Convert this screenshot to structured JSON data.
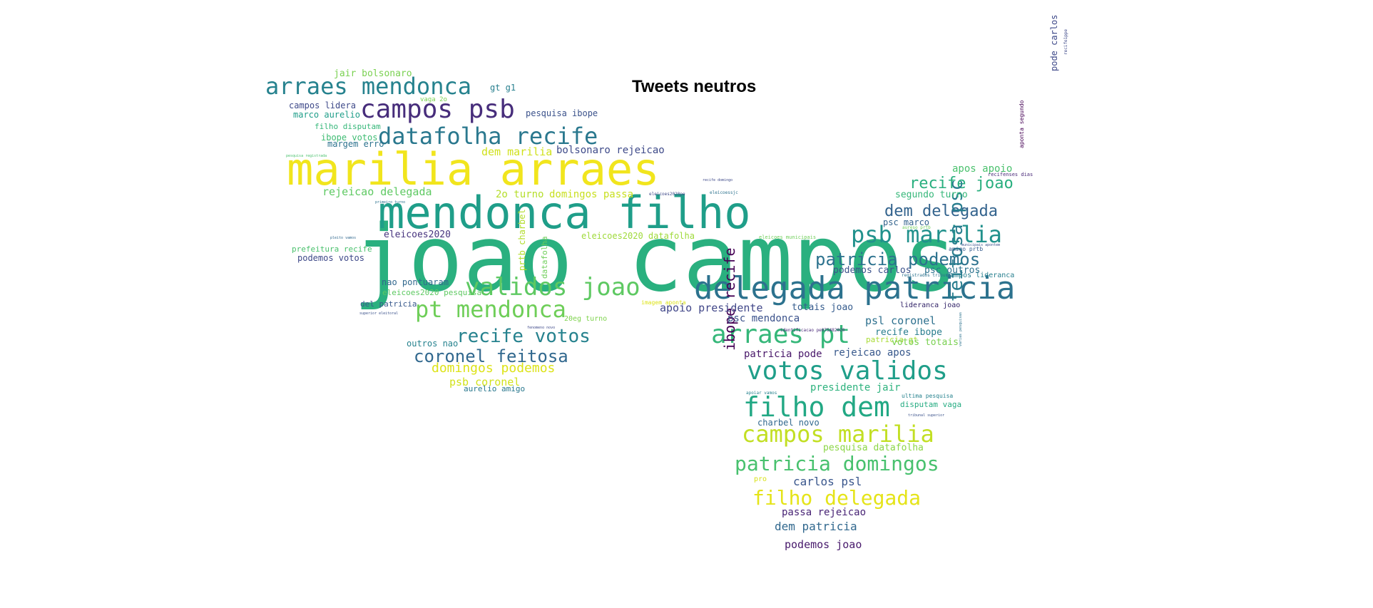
{
  "title": "Tweets neutros",
  "palette": [
    "#fde725",
    "#b5de2b",
    "#6ece58",
    "#35b779",
    "#1f9e89",
    "#26828e",
    "#31688e",
    "#3e4989",
    "#482878",
    "#440154"
  ],
  "words": [
    {
      "text": "joao campos",
      "color": "#2ab07f"
    },
    {
      "text": "mendonca filho",
      "color": "#1f9e89"
    },
    {
      "text": "marilia arraes",
      "color": "#f1e51d"
    },
    {
      "text": "delegada patricia",
      "color": "#2c728e"
    },
    {
      "text": "arraes mendonca",
      "color": "#26828e"
    },
    {
      "text": "campos psb",
      "color": "#472d7b"
    },
    {
      "text": "datafolha recife",
      "color": "#2a788e"
    },
    {
      "text": "validos joao",
      "color": "#5ec962"
    },
    {
      "text": "pt mendonca",
      "color": "#6ece58"
    },
    {
      "text": "recife votos",
      "color": "#26828e"
    },
    {
      "text": "coronel feitosa",
      "color": "#31688e"
    },
    {
      "text": "domingos podemos",
      "color": "#dde318"
    },
    {
      "text": "psb marilia",
      "color": "#21918c"
    },
    {
      "text": "patricia podemos",
      "color": "#2c728e"
    },
    {
      "text": "arraes pt",
      "color": "#35b779"
    },
    {
      "text": "votos validos",
      "color": "#1f9e89"
    },
    {
      "text": "filho dem",
      "color": "#22a884"
    },
    {
      "text": "campos marilia",
      "color": "#c2df23"
    },
    {
      "text": "patricia domingos",
      "color": "#48c16e"
    },
    {
      "text": "filho delegada",
      "color": "#e5e419"
    },
    {
      "text": "recife joao",
      "color": "#29af7f"
    },
    {
      "text": "dem delegada",
      "color": "#33638d"
    },
    {
      "text": "feitosa psc",
      "color": "#287d8e"
    },
    {
      "text": "ibope recife",
      "color": "#440154"
    },
    {
      "text": "jair bolsonaro",
      "color": "#7ad151"
    },
    {
      "text": "pesquisa ibope",
      "color": "#3b528b"
    },
    {
      "text": "dem marilia",
      "color": "#d0e11c"
    },
    {
      "text": "bolsonaro rejeicao",
      "color": "#3e4a89"
    },
    {
      "text": "rejeicao delegada",
      "color": "#5ec962"
    },
    {
      "text": "2o turno",
      "color": "#b5de2b"
    },
    {
      "text": "domingos passa",
      "color": "#c8e020"
    },
    {
      "text": "eleicoes2020",
      "color": "#46337e"
    },
    {
      "text": "eleicoes2020 datafolha",
      "color": "#9fda3a"
    },
    {
      "text": "prefeitura recife",
      "color": "#4ac16d"
    },
    {
      "text": "podemos votos",
      "color": "#3e4989"
    },
    {
      "text": "nao pontuaram",
      "color": "#31688e"
    },
    {
      "text": "eleicoes2020 pesquisa",
      "color": "#5ec962"
    },
    {
      "text": "del patricia",
      "color": "#38598c"
    },
    {
      "text": "outros nao",
      "color": "#26828e"
    },
    {
      "text": "psb coronel",
      "color": "#d2e21b"
    },
    {
      "text": "aurelio amigo",
      "color": "#2a788e"
    },
    {
      "text": "campos lidera",
      "color": "#3e4989"
    },
    {
      "text": "marco aurelio",
      "color": "#1f9e89"
    },
    {
      "text": "filho disputam",
      "color": "#35b779"
    },
    {
      "text": "ibope votos",
      "color": "#3fbc73"
    },
    {
      "text": "margem erro",
      "color": "#2c728e"
    },
    {
      "text": "gt g1",
      "color": "#277f8e"
    },
    {
      "text": "apoio presidente",
      "color": "#404688"
    },
    {
      "text": "totais joao",
      "color": "#365c8d"
    },
    {
      "text": "psc mendonca",
      "color": "#3b528b"
    },
    {
      "text": "psl coronel",
      "color": "#2d708e"
    },
    {
      "text": "recife ibope",
      "color": "#287d8e"
    },
    {
      "text": "patricia gt",
      "color": "#a8db34"
    },
    {
      "text": "votos totais",
      "color": "#7ad151"
    },
    {
      "text": "patricia pode",
      "color": "#481769"
    },
    {
      "text": "rejeicao apos",
      "color": "#38598c"
    },
    {
      "text": "presidente jair",
      "color": "#2db27d"
    },
    {
      "text": "charbel novo",
      "color": "#31688e"
    },
    {
      "text": "pesquisa datafolha",
      "color": "#8bd646"
    },
    {
      "text": "carlos psl",
      "color": "#39568c"
    },
    {
      "text": "passa rejeicao",
      "color": "#482475"
    },
    {
      "text": "dem patricia",
      "color": "#31688e"
    },
    {
      "text": "podemos joao",
      "color": "#481a6c"
    },
    {
      "text": "apos apoio",
      "color": "#4ac16d"
    },
    {
      "text": "segundo turno",
      "color": "#35b779"
    },
    {
      "text": "psc marco",
      "color": "#33638d"
    },
    {
      "text": "podemos carlos",
      "color": "#3b528b"
    },
    {
      "text": "psc outros",
      "color": "#2c728e"
    },
    {
      "text": "lideranca joao",
      "color": "#2d1e64"
    },
    {
      "text": "prtb charbel",
      "color": "#b2dd2d"
    },
    {
      "text": "datafolha",
      "color": "#6ece58"
    },
    {
      "text": "disputam vaga",
      "color": "#25ac82"
    },
    {
      "text": "campos lideranca",
      "color": "#277f8e"
    },
    {
      "text": "pode carlos",
      "color": "#3e4989"
    },
    {
      "text": "aponta segundo",
      "color": "#440154"
    },
    {
      "text": "pro",
      "color": "#d8e219"
    },
    {
      "text": "20eg turno",
      "color": "#7fd34e"
    },
    {
      "text": "vaga 2o",
      "color": "#7ad151"
    },
    {
      "text": "ultima pesquisa",
      "color": "#26828e"
    },
    {
      "text": "amigo prtb",
      "color": "#365c8d"
    },
    {
      "text": "recifenses dias",
      "color": "#482878"
    },
    {
      "text": "eleicoes municipais",
      "color": "#6ece58"
    },
    {
      "text": "imagem aponta",
      "color": "#dde318"
    },
    {
      "text": "recife1ppe",
      "color": "#3e4989"
    },
    {
      "text": "pesquisa registrada",
      "color": "#4ac16d"
    },
    {
      "text": "primeiro turno",
      "color": "#2c728e"
    },
    {
      "text": "pleito vamos",
      "color": "#31688e"
    },
    {
      "text": "eleicoes2020pe",
      "color": "#3e4989"
    },
    {
      "text": "superior eleitoral",
      "color": "#3b528b"
    },
    {
      "text": "fenomeno novo",
      "color": "#3e4989"
    },
    {
      "text": "recife domingo",
      "color": "#3e4989"
    },
    {
      "text": "eleicoessjc",
      "color": "#2c728e"
    },
    {
      "text": "tribunal superior",
      "color": "#3b528b"
    },
    {
      "text": "identificacao pe075482020",
      "color": "#482878"
    },
    {
      "text": "registrados tribunal",
      "color": "#2c728e"
    },
    {
      "text": "aureso prtb",
      "color": "#6ece58"
    },
    {
      "text": "apoiar vamos",
      "color": "#26828e"
    },
    {
      "text": "municipais apontem",
      "color": "#3b528b"
    },
    {
      "text": "varias pesquisas",
      "color": "#2c728e"
    },
    {
      "text": "votos psb",
      "color": "#6ece58"
    }
  ]
}
